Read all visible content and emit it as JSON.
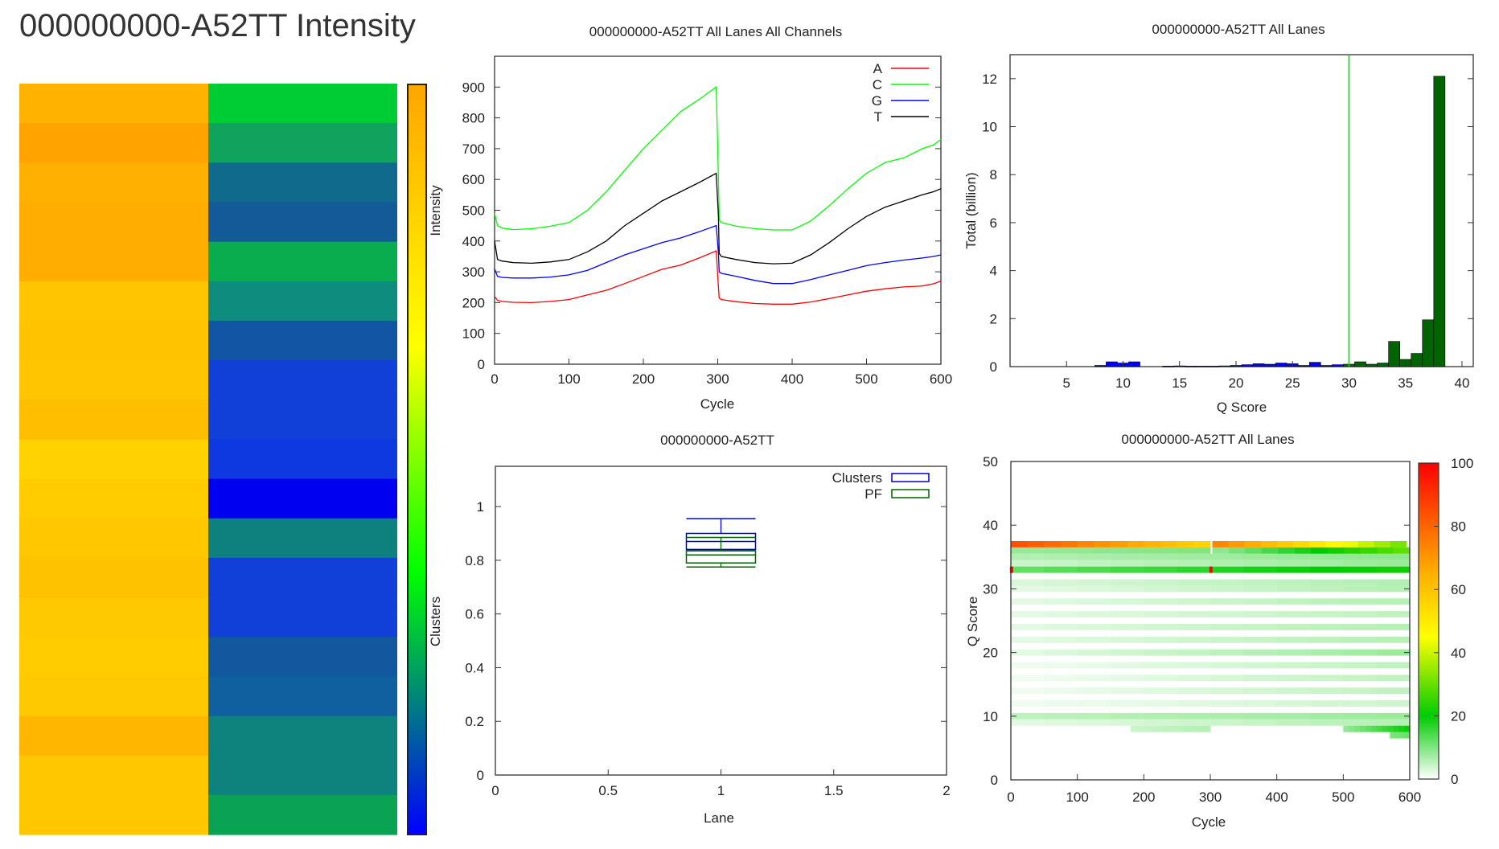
{
  "page": {
    "title": "000000000-A52TT Intensity"
  },
  "chart_data": [
    {
      "id": "intensity-heatmap",
      "type": "heatmap",
      "title": "000000000-A52TT Intensity",
      "columns": [
        "Intensity",
        "Clusters"
      ],
      "colorbar_labels": [
        "Intensity",
        "Clusters"
      ],
      "tile_count": 19,
      "intensity_colors": [
        "#FFB200",
        "#FFA300",
        "#FFB000",
        "#FFAE00",
        "#FFAE00",
        "#FFC500",
        "#FFC300",
        "#FFC600",
        "#FFBE00",
        "#FFD200",
        "#FFCC00",
        "#FFC700",
        "#FFC200",
        "#FFC900",
        "#FFCC00",
        "#FFC900",
        "#FFB600",
        "#FFC700",
        "#FFC700"
      ],
      "cluster_colors": [
        "#00CC33",
        "#0FA35E",
        "#106A8C",
        "#135A99",
        "#0AAD4E",
        "#0E8C7E",
        "#1255A4",
        "#1040D8",
        "#1040D8",
        "#0E38E0",
        "#0000F0",
        "#0E807E",
        "#1040D8",
        "#1040D8",
        "#11589E",
        "#1060A0",
        "#0E837E",
        "#0E837E",
        "#0AA353"
      ]
    },
    {
      "id": "all-channels-line",
      "type": "line",
      "title": "000000000-A52TT All Lanes All Channels",
      "xlabel": "Cycle",
      "ylabel": "",
      "xlim": [
        0,
        600
      ],
      "ylim": [
        0,
        1000
      ],
      "xticks": [
        0,
        100,
        200,
        300,
        400,
        500,
        600
      ],
      "yticks": [
        0,
        100,
        200,
        300,
        400,
        500,
        600,
        700,
        800,
        900
      ],
      "legend_position": "top-right",
      "x": [
        0,
        4,
        10,
        25,
        50,
        75,
        100,
        125,
        150,
        175,
        200,
        225,
        250,
        275,
        298,
        301,
        302,
        305,
        325,
        350,
        375,
        400,
        425,
        450,
        475,
        500,
        525,
        550,
        575,
        590,
        600
      ],
      "series": [
        {
          "name": "A",
          "color": "#FF0000",
          "values": [
            220,
            207,
            204,
            201,
            200,
            204,
            210,
            225,
            240,
            262,
            285,
            308,
            322,
            345,
            368,
            250,
            215,
            210,
            203,
            197,
            195,
            195,
            202,
            213,
            225,
            237,
            245,
            251,
            254,
            261,
            270
          ]
        },
        {
          "name": "C",
          "color": "#00FF00",
          "values": [
            490,
            450,
            442,
            437,
            440,
            448,
            460,
            500,
            560,
            630,
            700,
            760,
            820,
            860,
            900,
            600,
            470,
            460,
            448,
            440,
            436,
            436,
            465,
            515,
            570,
            620,
            655,
            670,
            700,
            712,
            730
          ]
        },
        {
          "name": "G",
          "color": "#0000FF",
          "values": [
            310,
            285,
            282,
            280,
            280,
            283,
            290,
            305,
            330,
            355,
            375,
            395,
            410,
            430,
            450,
            360,
            300,
            295,
            285,
            272,
            262,
            262,
            275,
            290,
            305,
            320,
            330,
            338,
            345,
            350,
            355
          ]
        },
        {
          "name": "T",
          "color": "#000000",
          "values": [
            400,
            340,
            335,
            330,
            328,
            332,
            340,
            365,
            400,
            450,
            490,
            530,
            560,
            590,
            620,
            480,
            360,
            350,
            340,
            330,
            326,
            328,
            355,
            395,
            440,
            480,
            510,
            530,
            550,
            560,
            570
          ]
        }
      ]
    },
    {
      "id": "qscore-histogram",
      "type": "bar",
      "title": "000000000-A52TT All Lanes",
      "xlabel": "Q Score",
      "ylabel": "Total (billion)",
      "xlim": [
        0,
        41
      ],
      "ylim": [
        0,
        13
      ],
      "xticks": [
        5,
        10,
        15,
        20,
        25,
        30,
        35,
        40
      ],
      "yticks": [
        0,
        2,
        4,
        6,
        8,
        10,
        12
      ],
      "threshold": 30,
      "threshold_color": "#00DD00",
      "below_threshold_color": "#0000FF",
      "above_threshold_color": "#006400",
      "categories": [
        8,
        9,
        10,
        11,
        14,
        15,
        16,
        17,
        18,
        19,
        20,
        21,
        22,
        23,
        24,
        25,
        26,
        27,
        28,
        29,
        30,
        31,
        32,
        33,
        34,
        35,
        36,
        37,
        38
      ],
      "values": [
        0.05,
        0.2,
        0.15,
        0.2,
        0.02,
        0.03,
        0.02,
        0.02,
        0.02,
        0.03,
        0.05,
        0.08,
        0.12,
        0.1,
        0.15,
        0.12,
        0.05,
        0.18,
        0.05,
        0.08,
        0.1,
        0.2,
        0.1,
        0.15,
        1.05,
        0.3,
        0.55,
        1.95,
        12.1
      ]
    },
    {
      "id": "lane-boxplot",
      "type": "box",
      "title": "000000000-A52TT",
      "xlabel": "Lane",
      "ylabel": "",
      "xlim": [
        0,
        2
      ],
      "ylim": [
        0,
        1.15
      ],
      "xticks": [
        0,
        0.5,
        1,
        1.5,
        2
      ],
      "yticks": [
        0,
        0.2,
        0.4,
        0.6,
        0.8,
        1
      ],
      "legend_position": "top-right",
      "series": [
        {
          "name": "Clusters",
          "color": "#0000CC",
          "lane": 1,
          "min": 0.84,
          "q1": 0.84,
          "median": 0.87,
          "q3": 0.9,
          "max": 0.955
        },
        {
          "name": "PF",
          "color": "#006400",
          "lane": 1,
          "min": 0.775,
          "q1": 0.79,
          "median": 0.82,
          "q3": 0.835,
          "max": 0.885
        }
      ]
    },
    {
      "id": "qscore-cycle-heatmap",
      "type": "heatmap",
      "title": "000000000-A52TT All Lanes",
      "xlabel": "Cycle",
      "ylabel": "Q Score",
      "xlim": [
        0,
        600
      ],
      "ylim": [
        0,
        50
      ],
      "xticks": [
        0,
        100,
        200,
        300,
        400,
        500,
        600
      ],
      "yticks": [
        0,
        10,
        20,
        30,
        40,
        50
      ],
      "colorbar_ticks": [
        0,
        20,
        40,
        60,
        80,
        100
      ],
      "colorbar_colors": [
        "#FFFFFF",
        "#00CC00",
        "#FFFF00",
        "#FF0000"
      ],
      "bands": [
        {
          "q": 37,
          "x0": 0,
          "x1": 300,
          "v0": 85,
          "v1": 55
        },
        {
          "q": 37,
          "x0": 303,
          "x1": 595,
          "v0": 75,
          "v1": 30
        },
        {
          "q": 36,
          "x0": 0,
          "x1": 300,
          "v0": 8,
          "v1": 10
        },
        {
          "q": 36,
          "x0": 303,
          "x1": 600,
          "v0": 8,
          "v1": 30
        },
        {
          "q": 35,
          "x0": 0,
          "x1": 600,
          "v0": 6,
          "v1": 9
        },
        {
          "q": 34,
          "x0": 0,
          "x1": 600,
          "v0": 4,
          "v1": 8
        },
        {
          "q": 33,
          "x0": 0,
          "x1": 600,
          "v0": 12,
          "v1": 22
        },
        {
          "q": 31,
          "x0": 0,
          "x1": 600,
          "v0": 3,
          "v1": 6
        },
        {
          "q": 30,
          "x0": 0,
          "x1": 600,
          "v0": 2,
          "v1": 6
        },
        {
          "q": 28,
          "x0": 0,
          "x1": 600,
          "v0": 2,
          "v1": 6
        },
        {
          "q": 26,
          "x0": 0,
          "x1": 600,
          "v0": 2,
          "v1": 5
        },
        {
          "q": 24,
          "x0": 0,
          "x1": 600,
          "v0": 2,
          "v1": 6
        },
        {
          "q": 22,
          "x0": 0,
          "x1": 600,
          "v0": 2,
          "v1": 6
        },
        {
          "q": 20,
          "x0": 0,
          "x1": 600,
          "v0": 2,
          "v1": 8
        },
        {
          "q": 18,
          "x0": 0,
          "x1": 600,
          "v0": 1,
          "v1": 5
        },
        {
          "q": 16,
          "x0": 0,
          "x1": 600,
          "v0": 1,
          "v1": 5
        },
        {
          "q": 14,
          "x0": 0,
          "x1": 600,
          "v0": 1,
          "v1": 5
        },
        {
          "q": 12,
          "x0": 0,
          "x1": 600,
          "v0": 1,
          "v1": 4
        },
        {
          "q": 10,
          "x0": 0,
          "x1": 600,
          "v0": 5,
          "v1": 8
        },
        {
          "q": 9,
          "x0": 0,
          "x1": 600,
          "v0": 2,
          "v1": 6
        },
        {
          "q": 8,
          "x0": 180,
          "x1": 300,
          "v0": 4,
          "v1": 6
        },
        {
          "q": 8,
          "x0": 500,
          "x1": 600,
          "v0": 8,
          "v1": 20
        },
        {
          "q": 7,
          "x0": 570,
          "x1": 600,
          "v0": 10,
          "v1": 12
        }
      ],
      "highlights": [
        {
          "cycle": 1,
          "q": 33,
          "value": 100
        },
        {
          "cycle": 301,
          "q": 33,
          "value": 100
        }
      ]
    }
  ]
}
